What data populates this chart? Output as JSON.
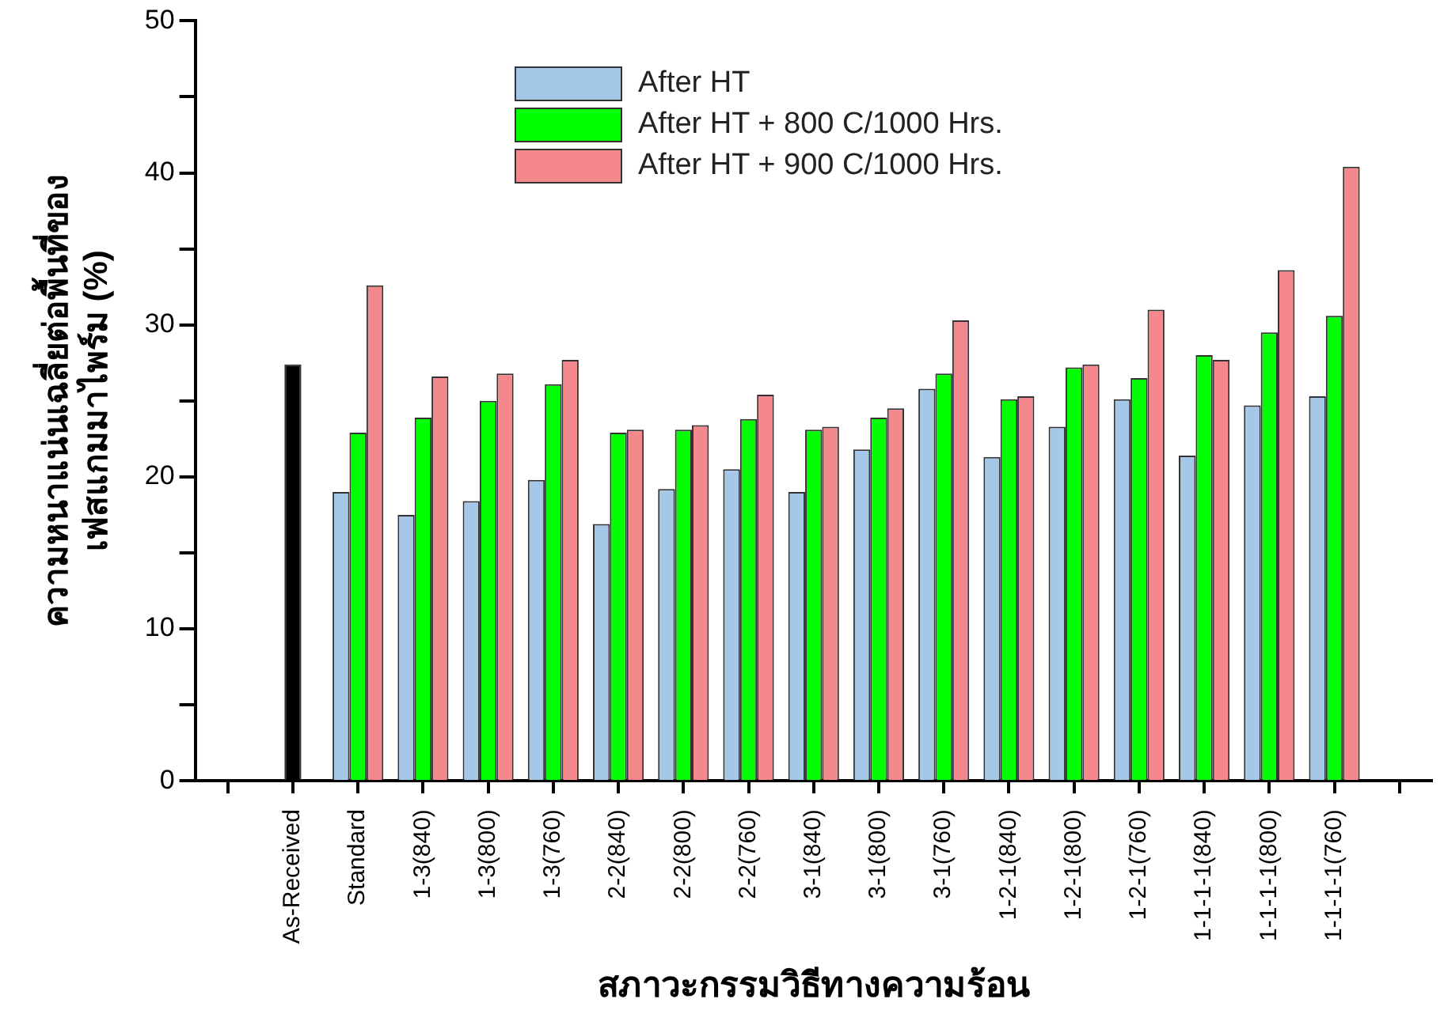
{
  "chart_data": {
    "type": "bar",
    "xlabel": "สภาวะกรรมวิธีทางความร้อน",
    "ylabel": "ความหนาแน่นเฉลี่ยต่อพื้นที่ของ\nเฟสแกมมาไพร์ม (%)",
    "categories": [
      null,
      "As-Received",
      "Standard",
      "1-3(840)",
      "1-3(800)",
      "1-3(760)",
      "2-2(840)",
      "2-2(800)",
      "2-2(760)",
      "3-1(840)",
      "3-1(800)",
      "3-1(760)",
      "1-2-1(840)",
      "1-2-1(800)",
      "1-2-1(760)",
      "1-1-1-1(840)",
      "1-1-1-1(800)",
      "1-1-1-1(760)",
      null
    ],
    "series": [
      {
        "name": "After HT",
        "color": "#a6c8e8",
        "values": [
          null,
          null,
          19.0,
          17.5,
          18.4,
          19.8,
          16.9,
          19.2,
          20.5,
          19.0,
          21.8,
          25.8,
          21.3,
          23.3,
          25.1,
          21.4,
          24.7,
          25.3,
          null
        ]
      },
      {
        "name": "After HT + 800 C/1000 Hrs.",
        "color": "#00ff00",
        "colors": [
          "#00ff00",
          "#000000",
          "#00ff00",
          "#00ff00",
          "#00ff00",
          "#00ff00",
          "#00ff00",
          "#00ff00",
          "#00ff00",
          "#00ff00",
          "#00ff00",
          "#00ff00",
          "#00ff00",
          "#00ff00",
          "#00ff00",
          "#00ff00",
          "#00ff00",
          "#00ff00",
          "#00ff00"
        ],
        "values": [
          null,
          27.4,
          22.9,
          23.9,
          25.0,
          26.1,
          22.9,
          23.1,
          23.8,
          23.1,
          23.9,
          26.8,
          25.1,
          27.2,
          26.5,
          28.0,
          29.5,
          30.6,
          null
        ]
      },
      {
        "name": "After HT + 900 C/1000 Hrs.",
        "color": "#f4888c",
        "values": [
          null,
          null,
          32.6,
          26.6,
          26.8,
          27.7,
          23.1,
          23.4,
          25.4,
          23.3,
          24.5,
          30.3,
          25.3,
          27.4,
          31.0,
          27.7,
          33.6,
          40.4,
          null
        ]
      }
    ],
    "ylim": [
      0,
      50
    ],
    "yticks": [
      0,
      {
        "value": 5,
        "label": null
      },
      10,
      {
        "value": 15,
        "label": null
      },
      20,
      {
        "value": 25,
        "label": null
      },
      30,
      {
        "value": 35,
        "label": null
      },
      40,
      {
        "value": 45,
        "label": null
      },
      50
    ],
    "grid": false,
    "legend": "top"
  }
}
